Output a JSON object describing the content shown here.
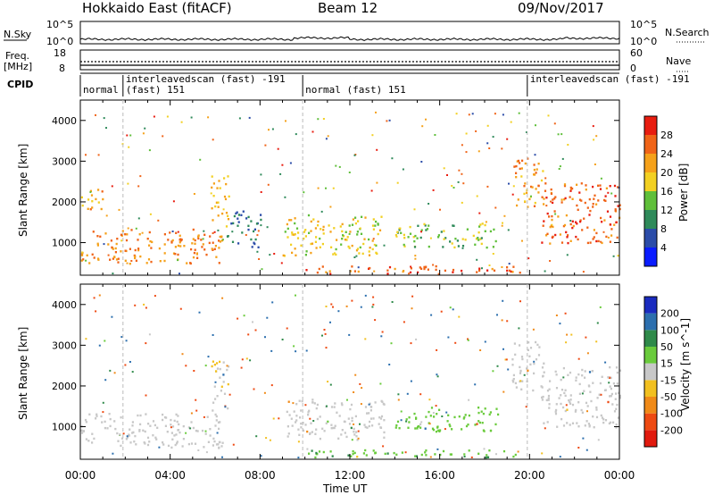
{
  "header": {
    "radar": "Hokkaido East (fitACF)",
    "beam": "Beam 12",
    "date": "09/Nov/2017"
  },
  "nsky": {
    "label": "N.Sky",
    "ticks": [
      "10^5",
      "10^0"
    ],
    "right_ticks": [
      "10^5",
      "10^0"
    ],
    "right_label": "N.Search"
  },
  "freq": {
    "label_line1": "Freq.",
    "label_line2": "[MHz]",
    "ticks": [
      "18",
      "8"
    ],
    "right_ticks": [
      "60",
      "0"
    ],
    "right_label": "Nave"
  },
  "cpid": {
    "label": "CPID",
    "segments": [
      {
        "start_h": 0.0,
        "end_h": 1.9,
        "text": "normal",
        "text2": ""
      },
      {
        "start_h": 1.9,
        "end_h": 9.9,
        "text": "interleavedscan (fast) -191",
        "text2": "(fast) 151"
      },
      {
        "start_h": 9.9,
        "end_h": 19.9,
        "text": "normal (fast) 151",
        "text2": ""
      },
      {
        "start_h": 19.9,
        "end_h": 24.0,
        "text": "interleavedscan (fast) -191",
        "text2": ""
      }
    ]
  },
  "x_axis": {
    "label": "Time UT",
    "ticks": [
      "00:00",
      "04:00",
      "08:00",
      "12:00",
      "16:00",
      "20:00",
      "00:00"
    ]
  },
  "power_panel": {
    "ylabel": "Slant Range [km]",
    "yticks": [
      "1000",
      "2000",
      "3000",
      "4000"
    ],
    "cbar_label": "Power [dB]",
    "cbar_ticks": [
      "4",
      "8",
      "12",
      "16",
      "20",
      "24",
      "28"
    ],
    "cbar_colors": [
      "#0a1cff",
      "#2b4ca8",
      "#2f8a5a",
      "#5fbf3a",
      "#f2d022",
      "#f5a11a",
      "#f06418",
      "#e81d10"
    ]
  },
  "velocity_panel": {
    "ylabel": "Slant Range [km]",
    "yticks": [
      "1000",
      "2000",
      "3000",
      "4000"
    ],
    "cbar_label": "Velocity [m s^-1]",
    "cbar_ticks": [
      "200",
      "100",
      "50",
      "15",
      "-15",
      "-50",
      "-100",
      "-200"
    ],
    "cbar_colors": [
      "#1a2bbf",
      "#2c6fae",
      "#2f8a4a",
      "#6acb3c",
      "#c8c8c8",
      "#f2c020",
      "#f08a18",
      "#ee4a12",
      "#e11a0e"
    ]
  },
  "chart_data": [
    {
      "type": "heatmap",
      "title": "Power",
      "xlabel": "Time UT",
      "ylabel": "Slant Range [km]",
      "xlim": [
        0,
        24
      ],
      "ylim": [
        200,
        4500
      ],
      "colorbar": {
        "label": "Power [dB]",
        "range": [
          0,
          32
        ]
      },
      "regions": [
        {
          "t0": 0.0,
          "t1": 6.3,
          "r_low": 500,
          "r_high": 1350,
          "dB": 28
        },
        {
          "t0": 0.0,
          "t1": 1.0,
          "r_low": 1800,
          "r_high": 2400,
          "dB": 26
        },
        {
          "t0": 5.8,
          "t1": 6.6,
          "r_low": 1400,
          "r_high": 2700,
          "dB": 24
        },
        {
          "t0": 6.5,
          "t1": 8.0,
          "r_low": 900,
          "r_high": 1800,
          "dB": 12
        },
        {
          "t0": 9.0,
          "t1": 13.5,
          "r_low": 700,
          "r_high": 1700,
          "dB": 22
        },
        {
          "t0": 10.0,
          "t1": 19.8,
          "r_low": 250,
          "r_high": 450,
          "dB": 30
        },
        {
          "t0": 14.0,
          "t1": 18.6,
          "r_low": 900,
          "r_high": 1500,
          "dB": 18
        },
        {
          "t0": 19.2,
          "t1": 20.6,
          "r_low": 1900,
          "r_high": 3100,
          "dB": 27
        },
        {
          "t0": 20.5,
          "t1": 24.0,
          "r_low": 1000,
          "r_high": 2500,
          "dB": 30
        }
      ]
    },
    {
      "type": "heatmap",
      "title": "Velocity",
      "xlabel": "Time UT",
      "ylabel": "Slant Range [km]",
      "xlim": [
        0,
        24
      ],
      "ylim": [
        200,
        4500
      ],
      "colorbar": {
        "label": "Velocity [m s^-1]",
        "range": [
          -200,
          200
        ]
      },
      "regions": [
        {
          "t0": 0.0,
          "t1": 6.3,
          "r_low": 500,
          "r_high": 1350,
          "velocity": 0
        },
        {
          "t0": 5.8,
          "t1": 6.6,
          "r_low": 1400,
          "r_high": 2700,
          "velocity": -5
        },
        {
          "t0": 9.0,
          "t1": 13.5,
          "r_low": 700,
          "r_high": 1700,
          "velocity": 0
        },
        {
          "t0": 10.0,
          "t1": 19.8,
          "r_low": 250,
          "r_high": 450,
          "velocity": 40
        },
        {
          "t0": 14.0,
          "t1": 18.6,
          "r_low": 900,
          "r_high": 1500,
          "velocity": 30
        },
        {
          "t0": 19.2,
          "t1": 20.6,
          "r_low": 1900,
          "r_high": 3100,
          "velocity": 0
        },
        {
          "t0": 20.5,
          "t1": 24.0,
          "r_low": 1000,
          "r_high": 2500,
          "velocity": 0
        }
      ]
    }
  ]
}
